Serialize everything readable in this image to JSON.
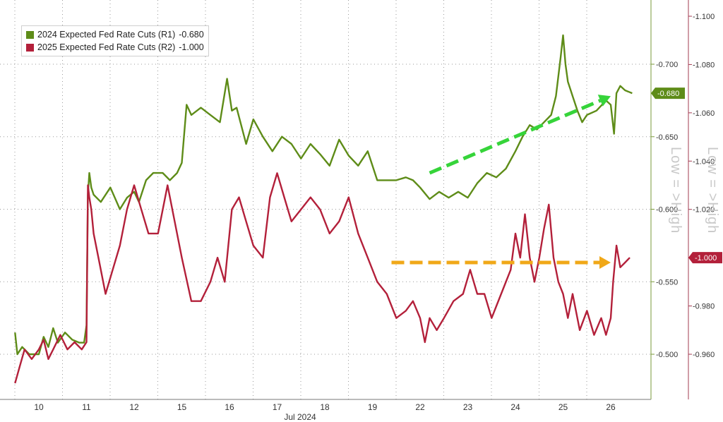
{
  "legend": {
    "items": [
      {
        "label": "2024 Expected Fed Rate Cuts (R1)",
        "value": "-0.680",
        "color": "#5e8c18"
      },
      {
        "label": "2025 Expected Fed Rate Cuts (R2)",
        "value": "-1.000",
        "color": "#b3203a"
      }
    ]
  },
  "colors": {
    "series_2024": "#5e8c18",
    "series_2025": "#b3203a",
    "highlight_band": "#a8dca5",
    "arrow_green": "#36d43a",
    "arrow_orange": "#f0a818",
    "r1_axis": "#7a9a3a",
    "r2_axis": "#a33b52",
    "grid": "#9a9a9a"
  },
  "captions": {
    "r1": "Low = >High",
    "r2": "Low = >High"
  },
  "chart_data": {
    "type": "line",
    "title": "",
    "xlabel": "Jul 2024",
    "x_ticks": [
      "10",
      "11",
      "12",
      "15",
      "16",
      "17",
      "18",
      "19",
      "22",
      "23",
      "24",
      "25",
      "26"
    ],
    "grid": true,
    "legend_position": "top-left",
    "axes": {
      "r1": {
        "side": "right",
        "ylim": [
          -0.46,
          -0.72
        ],
        "ticks": [
          "-0.700",
          "-0.650",
          "-0.600",
          "-0.550",
          "-0.500"
        ],
        "tick_values": [
          -0.7,
          -0.65,
          -0.6,
          -0.55,
          -0.5
        ]
      },
      "r2": {
        "side": "far-right",
        "ylim": [
          -0.945,
          -1.105
        ],
        "ticks": [
          "-1.100",
          "-1.080",
          "-1.060",
          "-1.040",
          "-1.020",
          "-1.000",
          "-0.980",
          "-0.960"
        ],
        "tick_values": [
          -1.1,
          -1.08,
          -1.06,
          -1.04,
          -1.02,
          -1.0,
          -0.98,
          -0.96
        ]
      }
    },
    "last_value_tags": [
      {
        "series": "2024 Expected Fed Rate Cuts (R1)",
        "text": "-0.680",
        "value": -0.68
      },
      {
        "series": "2025 Expected Fed Rate Cuts (R2)",
        "text": "-1.000",
        "value": -1.0
      }
    ],
    "highlight": {
      "x_start": 0.75,
      "x_end": 1.42,
      "y_start": -0.688,
      "y_end": -0.96,
      "axis": "r2"
    },
    "series": [
      {
        "name": "2024 Expected Fed Rate Cuts (R1)",
        "axis": "r1",
        "points": [
          [
            -0.5,
            -0.515
          ],
          [
            -0.45,
            -0.5
          ],
          [
            -0.35,
            -0.505
          ],
          [
            -0.2,
            -0.5
          ],
          [
            0,
            -0.5
          ],
          [
            0.1,
            -0.512
          ],
          [
            0.2,
            -0.505
          ],
          [
            0.3,
            -0.518
          ],
          [
            0.4,
            -0.508
          ],
          [
            0.55,
            -0.515
          ],
          [
            0.7,
            -0.51
          ],
          [
            0.85,
            -0.508
          ],
          [
            0.95,
            -0.508
          ],
          [
            1.0,
            -0.52
          ],
          [
            1.03,
            -0.61
          ],
          [
            1.06,
            -0.625
          ],
          [
            1.1,
            -0.615
          ],
          [
            1.15,
            -0.61
          ],
          [
            1.3,
            -0.605
          ],
          [
            1.5,
            -0.615
          ],
          [
            1.7,
            -0.6
          ],
          [
            1.85,
            -0.608
          ],
          [
            2.0,
            -0.612
          ],
          [
            2.1,
            -0.605
          ],
          [
            2.25,
            -0.62
          ],
          [
            2.4,
            -0.625
          ],
          [
            2.6,
            -0.625
          ],
          [
            2.75,
            -0.62
          ],
          [
            2.9,
            -0.625
          ],
          [
            3.0,
            -0.632
          ],
          [
            3.1,
            -0.672
          ],
          [
            3.2,
            -0.665
          ],
          [
            3.4,
            -0.67
          ],
          [
            3.6,
            -0.665
          ],
          [
            3.8,
            -0.66
          ],
          [
            3.95,
            -0.69
          ],
          [
            4.05,
            -0.668
          ],
          [
            4.15,
            -0.67
          ],
          [
            4.35,
            -0.645
          ],
          [
            4.5,
            -0.662
          ],
          [
            4.7,
            -0.65
          ],
          [
            4.9,
            -0.64
          ],
          [
            5.1,
            -0.65
          ],
          [
            5.3,
            -0.645
          ],
          [
            5.5,
            -0.635
          ],
          [
            5.7,
            -0.645
          ],
          [
            5.9,
            -0.638
          ],
          [
            6.1,
            -0.63
          ],
          [
            6.3,
            -0.648
          ],
          [
            6.5,
            -0.637
          ],
          [
            6.7,
            -0.63
          ],
          [
            6.9,
            -0.64
          ],
          [
            7.1,
            -0.62
          ],
          [
            7.3,
            -0.62
          ],
          [
            7.5,
            -0.62
          ],
          [
            7.7,
            -0.622
          ],
          [
            7.85,
            -0.62
          ],
          [
            8.0,
            -0.615
          ],
          [
            8.2,
            -0.607
          ],
          [
            8.4,
            -0.612
          ],
          [
            8.6,
            -0.608
          ],
          [
            8.8,
            -0.612
          ],
          [
            9.0,
            -0.608
          ],
          [
            9.2,
            -0.618
          ],
          [
            9.4,
            -0.625
          ],
          [
            9.6,
            -0.622
          ],
          [
            9.8,
            -0.628
          ],
          [
            10.0,
            -0.64
          ],
          [
            10.15,
            -0.65
          ],
          [
            10.3,
            -0.658
          ],
          [
            10.45,
            -0.655
          ],
          [
            10.6,
            -0.66
          ],
          [
            10.75,
            -0.665
          ],
          [
            10.85,
            -0.678
          ],
          [
            10.95,
            -0.705
          ],
          [
            11.0,
            -0.72
          ],
          [
            11.05,
            -0.7
          ],
          [
            11.1,
            -0.688
          ],
          [
            11.2,
            -0.678
          ],
          [
            11.3,
            -0.668
          ],
          [
            11.4,
            -0.66
          ],
          [
            11.5,
            -0.665
          ],
          [
            11.7,
            -0.668
          ],
          [
            11.9,
            -0.675
          ],
          [
            12.0,
            -0.672
          ],
          [
            12.07,
            -0.652
          ],
          [
            12.12,
            -0.68
          ],
          [
            12.2,
            -0.685
          ],
          [
            12.3,
            -0.682
          ],
          [
            12.45,
            -0.68
          ]
        ]
      },
      {
        "name": "2025 Expected Fed Rate Cuts (R2)",
        "axis": "r2",
        "points": [
          [
            -0.5,
            -0.948
          ],
          [
            -0.4,
            -0.955
          ],
          [
            -0.3,
            -0.962
          ],
          [
            -0.15,
            -0.958
          ],
          [
            0,
            -0.962
          ],
          [
            0.1,
            -0.966
          ],
          [
            0.2,
            -0.958
          ],
          [
            0.3,
            -0.962
          ],
          [
            0.45,
            -0.968
          ],
          [
            0.6,
            -0.962
          ],
          [
            0.75,
            -0.965
          ],
          [
            0.9,
            -0.962
          ],
          [
            1.0,
            -0.965
          ],
          [
            1.03,
            -1.03
          ],
          [
            1.06,
            -1.025
          ],
          [
            1.1,
            -1.02
          ],
          [
            1.15,
            -1.01
          ],
          [
            1.25,
            -1.0
          ],
          [
            1.4,
            -0.985
          ],
          [
            1.55,
            -0.995
          ],
          [
            1.7,
            -1.005
          ],
          [
            1.85,
            -1.02
          ],
          [
            2.0,
            -1.03
          ],
          [
            2.15,
            -1.02
          ],
          [
            2.3,
            -1.01
          ],
          [
            2.5,
            -1.01
          ],
          [
            2.7,
            -1.03
          ],
          [
            2.85,
            -1.015
          ],
          [
            3.0,
            -1.0
          ],
          [
            3.2,
            -0.982
          ],
          [
            3.4,
            -0.982
          ],
          [
            3.6,
            -0.99
          ],
          [
            3.75,
            -1.0
          ],
          [
            3.9,
            -0.99
          ],
          [
            4.05,
            -1.02
          ],
          [
            4.2,
            -1.025
          ],
          [
            4.35,
            -1.015
          ],
          [
            4.5,
            -1.005
          ],
          [
            4.7,
            -1.0
          ],
          [
            4.85,
            -1.025
          ],
          [
            5.0,
            -1.035
          ],
          [
            5.15,
            -1.025
          ],
          [
            5.3,
            -1.015
          ],
          [
            5.5,
            -1.02
          ],
          [
            5.7,
            -1.025
          ],
          [
            5.9,
            -1.02
          ],
          [
            6.1,
            -1.01
          ],
          [
            6.3,
            -1.015
          ],
          [
            6.5,
            -1.025
          ],
          [
            6.7,
            -1.01
          ],
          [
            6.9,
            -1.0
          ],
          [
            7.1,
            -0.99
          ],
          [
            7.3,
            -0.985
          ],
          [
            7.5,
            -0.975
          ],
          [
            7.7,
            -0.978
          ],
          [
            7.85,
            -0.982
          ],
          [
            8.0,
            -0.975
          ],
          [
            8.1,
            -0.965
          ],
          [
            8.2,
            -0.975
          ],
          [
            8.35,
            -0.97
          ],
          [
            8.5,
            -0.975
          ],
          [
            8.7,
            -0.982
          ],
          [
            8.9,
            -0.985
          ],
          [
            9.05,
            -0.995
          ],
          [
            9.2,
            -0.985
          ],
          [
            9.35,
            -0.985
          ],
          [
            9.5,
            -0.975
          ],
          [
            9.7,
            -0.985
          ],
          [
            9.9,
            -0.995
          ],
          [
            10.0,
            -1.01
          ],
          [
            10.1,
            -1.0
          ],
          [
            10.2,
            -1.018
          ],
          [
            10.3,
            -1.0
          ],
          [
            10.4,
            -0.99
          ],
          [
            10.5,
            -1.0
          ],
          [
            10.6,
            -1.012
          ],
          [
            10.7,
            -1.022
          ],
          [
            10.8,
            -1.0
          ],
          [
            10.9,
            -0.99
          ],
          [
            11.0,
            -0.985
          ],
          [
            11.1,
            -0.975
          ],
          [
            11.2,
            -0.985
          ],
          [
            11.35,
            -0.97
          ],
          [
            11.5,
            -0.978
          ],
          [
            11.65,
            -0.968
          ],
          [
            11.8,
            -0.975
          ],
          [
            11.9,
            -0.968
          ],
          [
            12.0,
            -0.975
          ],
          [
            12.05,
            -0.99
          ],
          [
            12.12,
            -1.005
          ],
          [
            12.2,
            -0.996
          ],
          [
            12.3,
            -0.998
          ],
          [
            12.4,
            -1.0
          ]
        ]
      }
    ],
    "annotations": [
      {
        "type": "arrow",
        "color": "green",
        "from": [
          8.2,
          -0.625
        ],
        "to": [
          12.0,
          -0.678
        ],
        "axis": "r1"
      },
      {
        "type": "arrow",
        "color": "orange",
        "from": [
          7.4,
          -0.998
        ],
        "to": [
          12.0,
          -0.998
        ],
        "axis": "r2"
      }
    ]
  }
}
